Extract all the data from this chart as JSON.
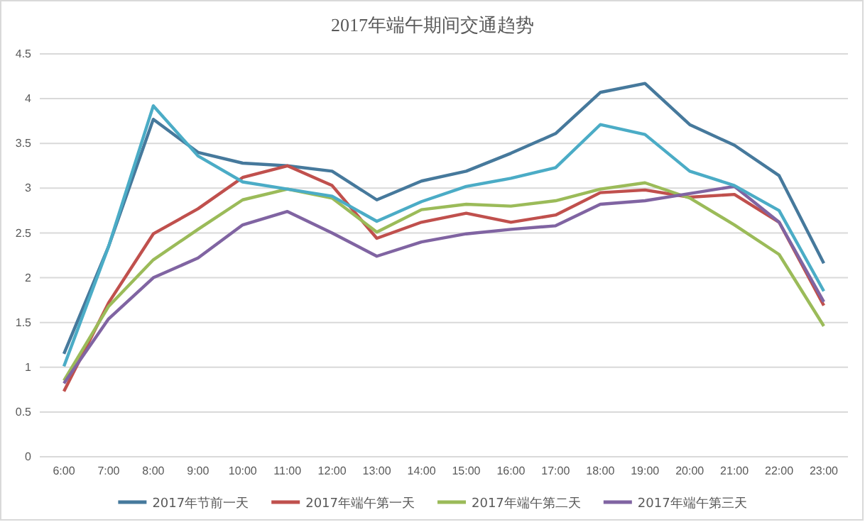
{
  "chart_data": {
    "type": "line",
    "title": "2017年端午期间交通趋势",
    "categories": [
      "6:00",
      "7:00",
      "8:00",
      "9:00",
      "10:00",
      "11:00",
      "12:00",
      "13:00",
      "14:00",
      "15:00",
      "16:00",
      "17:00",
      "18:00",
      "19:00",
      "20:00",
      "21:00",
      "22:00",
      "23:00"
    ],
    "series": [
      {
        "name": "2017年节前一天",
        "color": "#46799c",
        "values": [
          1.15,
          2.35,
          3.77,
          3.4,
          3.28,
          3.25,
          3.19,
          2.87,
          3.08,
          3.19,
          3.39,
          3.61,
          4.07,
          4.17,
          3.71,
          3.48,
          3.14,
          2.16
        ]
      },
      {
        "name": "2017年端午第一天",
        "color": "#c0504d",
        "values": [
          0.73,
          1.72,
          2.49,
          2.77,
          3.12,
          3.25,
          3.03,
          2.44,
          2.62,
          2.72,
          2.62,
          2.7,
          2.95,
          2.98,
          2.9,
          2.93,
          2.62,
          1.69
        ]
      },
      {
        "name": "2017年端午第二天",
        "color": "#9bbb59",
        "values": [
          0.85,
          1.68,
          2.2,
          2.54,
          2.87,
          2.99,
          2.89,
          2.51,
          2.76,
          2.82,
          2.8,
          2.86,
          2.99,
          3.06,
          2.89,
          2.59,
          2.26,
          1.46
        ]
      },
      {
        "name": "2017年端午第三天",
        "color": "#8064a2",
        "values": [
          0.82,
          1.54,
          2.0,
          2.22,
          2.59,
          2.74,
          2.5,
          2.24,
          2.4,
          2.49,
          2.54,
          2.58,
          2.82,
          2.86,
          2.94,
          3.02,
          2.62,
          1.73
        ]
      },
      {
        "color": "#4bacc6",
        "values": [
          1.01,
          2.35,
          3.92,
          3.36,
          3.07,
          2.99,
          2.91,
          2.63,
          2.85,
          3.02,
          3.11,
          3.23,
          3.71,
          3.6,
          3.19,
          3.03,
          2.75,
          1.85
        ]
      }
    ],
    "ylim": [
      0,
      4.5
    ],
    "yticks": [
      0,
      0.5,
      1,
      1.5,
      2,
      2.5,
      3,
      3.5,
      4,
      4.5
    ],
    "grid": "y",
    "legend": "bottom",
    "marker": "none",
    "line_style": "solid"
  }
}
